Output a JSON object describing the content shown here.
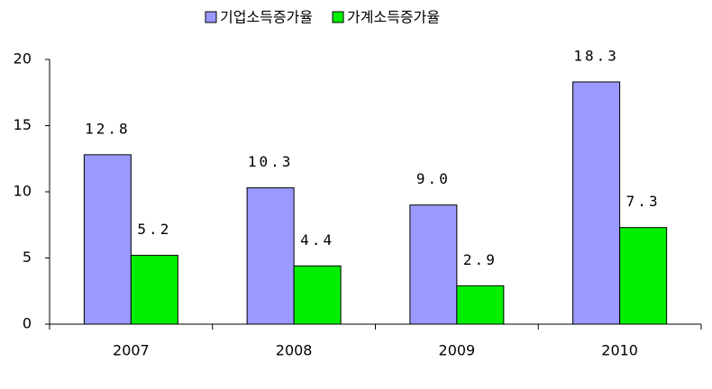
{
  "chart_data": {
    "type": "bar",
    "categories": [
      "2007",
      "2008",
      "2009",
      "2010"
    ],
    "series": [
      {
        "name": "기업소득증가율",
        "color": "#9999ff",
        "values": [
          12.8,
          10.3,
          9.0,
          18.3
        ],
        "value_labels": [
          "12.8",
          "10.3",
          "9.0",
          "18.3"
        ]
      },
      {
        "name": "가계소득증가율",
        "color": "#00ee00",
        "values": [
          5.2,
          4.4,
          2.9,
          7.3
        ]
      }
    ],
    "ylim": [
      0,
      20
    ],
    "yticks": [
      0,
      5,
      10,
      15,
      20
    ],
    "grid": false,
    "legend": "top"
  }
}
